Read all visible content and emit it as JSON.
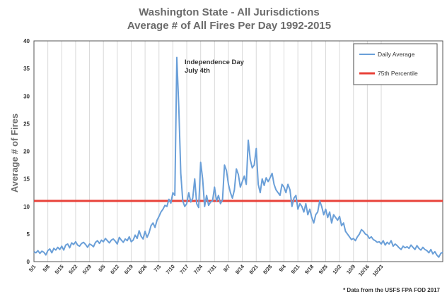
{
  "chart_data": {
    "type": "line",
    "title": "Washington State - All Jurisdictions",
    "subtitle": "Average # of All Fires Per Day 1992-2015",
    "xlabel": "",
    "ylabel": "Average # of Fires",
    "ylim": [
      0,
      40
    ],
    "yticks": [
      0,
      5,
      10,
      15,
      20,
      25,
      30,
      35,
      40
    ],
    "grid": "vertical",
    "legend_position": "top-right",
    "x_ticks": [
      "5/1",
      "5/8",
      "5/15",
      "5/22",
      "5/29",
      "6/5",
      "6/12",
      "6/19",
      "6/26",
      "7/3",
      "7/10",
      "7/17",
      "7/24",
      "7/31",
      "8/7",
      "8/14",
      "8/21",
      "8/28",
      "9/4",
      "9/11",
      "9/18",
      "9/25",
      "10/2",
      "10/9",
      "10/16",
      "10/23"
    ],
    "series": [
      {
        "name": "Daily Average",
        "color": "#6a9fd8",
        "x_start": "5/1",
        "values": [
          1.8,
          1.6,
          2.0,
          1.5,
          1.9,
          1.7,
          1.2,
          2.0,
          2.3,
          1.6,
          2.4,
          2.1,
          2.6,
          2.2,
          2.8,
          2.1,
          3.0,
          3.2,
          2.5,
          3.4,
          3.1,
          3.6,
          3.0,
          2.8,
          3.3,
          3.5,
          3.1,
          2.6,
          3.2,
          3.0,
          2.7,
          3.5,
          3.8,
          3.3,
          3.9,
          3.6,
          4.2,
          3.8,
          3.4,
          3.9,
          4.1,
          3.7,
          3.2,
          4.4,
          3.9,
          3.5,
          4.1,
          3.8,
          4.5,
          3.6,
          3.9,
          4.8,
          4.2,
          5.6,
          4.6,
          4.1,
          5.5,
          4.4,
          5.2,
          6.5,
          7.0,
          6.2,
          7.5,
          8.2,
          9.0,
          9.5,
          10.2,
          10.0,
          11.3,
          10.6,
          12.5,
          12.0,
          37.0,
          28.0,
          16.0,
          11.0,
          10.0,
          10.5,
          12.5,
          10.8,
          11.5,
          15.0,
          10.5,
          9.8,
          18.0,
          15.0,
          10.0,
          12.0,
          10.2,
          10.8,
          11.0,
          13.5,
          11.0,
          12.0,
          10.5,
          11.2,
          17.5,
          16.5,
          14.0,
          12.5,
          11.5,
          13.0,
          16.8,
          15.8,
          13.5,
          14.5,
          15.5,
          14.0,
          22.0,
          18.5,
          17.0,
          17.5,
          20.5,
          14.0,
          12.5,
          15.0,
          13.8,
          15.2,
          14.5,
          15.2,
          16.0,
          14.0,
          13.0,
          12.5,
          12.0,
          14.0,
          13.5,
          12.5,
          14.0,
          13.0,
          10.0,
          11.5,
          12.0,
          9.5,
          10.5,
          10.0,
          9.0,
          10.5,
          8.5,
          9.5,
          8.0,
          7.0,
          8.5,
          9.0,
          11.0,
          10.0,
          8.5,
          9.5,
          8.0,
          9.0,
          7.0,
          8.5,
          8.0,
          7.5,
          8.2,
          6.5,
          7.0,
          5.5,
          5.0,
          4.5,
          4.0,
          4.2,
          3.8,
          4.5,
          5.0,
          5.8,
          5.5,
          5.0,
          4.8,
          4.2,
          4.5,
          4.0,
          3.8,
          3.5,
          3.6,
          3.2,
          3.8,
          3.0,
          3.5,
          3.2,
          3.8,
          2.8,
          3.2,
          2.9,
          2.5,
          2.2,
          2.8,
          2.5,
          2.7,
          2.4,
          3.0,
          2.6,
          2.2,
          2.9,
          2.4,
          2.1,
          2.6,
          2.2,
          2.0,
          1.6,
          2.2,
          1.4,
          1.8,
          1.2,
          0.8,
          1.5,
          1.7
        ]
      },
      {
        "name": "75th Percentile",
        "color": "#e8423a",
        "values": [
          11.0
        ]
      }
    ],
    "annotations": [
      {
        "text_line1": "Independence Day",
        "text_line2": "July 4th",
        "x": "7/4",
        "y": 37.0
      }
    ],
    "footnote": "* Data from the USFS FPA FOD 2017"
  }
}
